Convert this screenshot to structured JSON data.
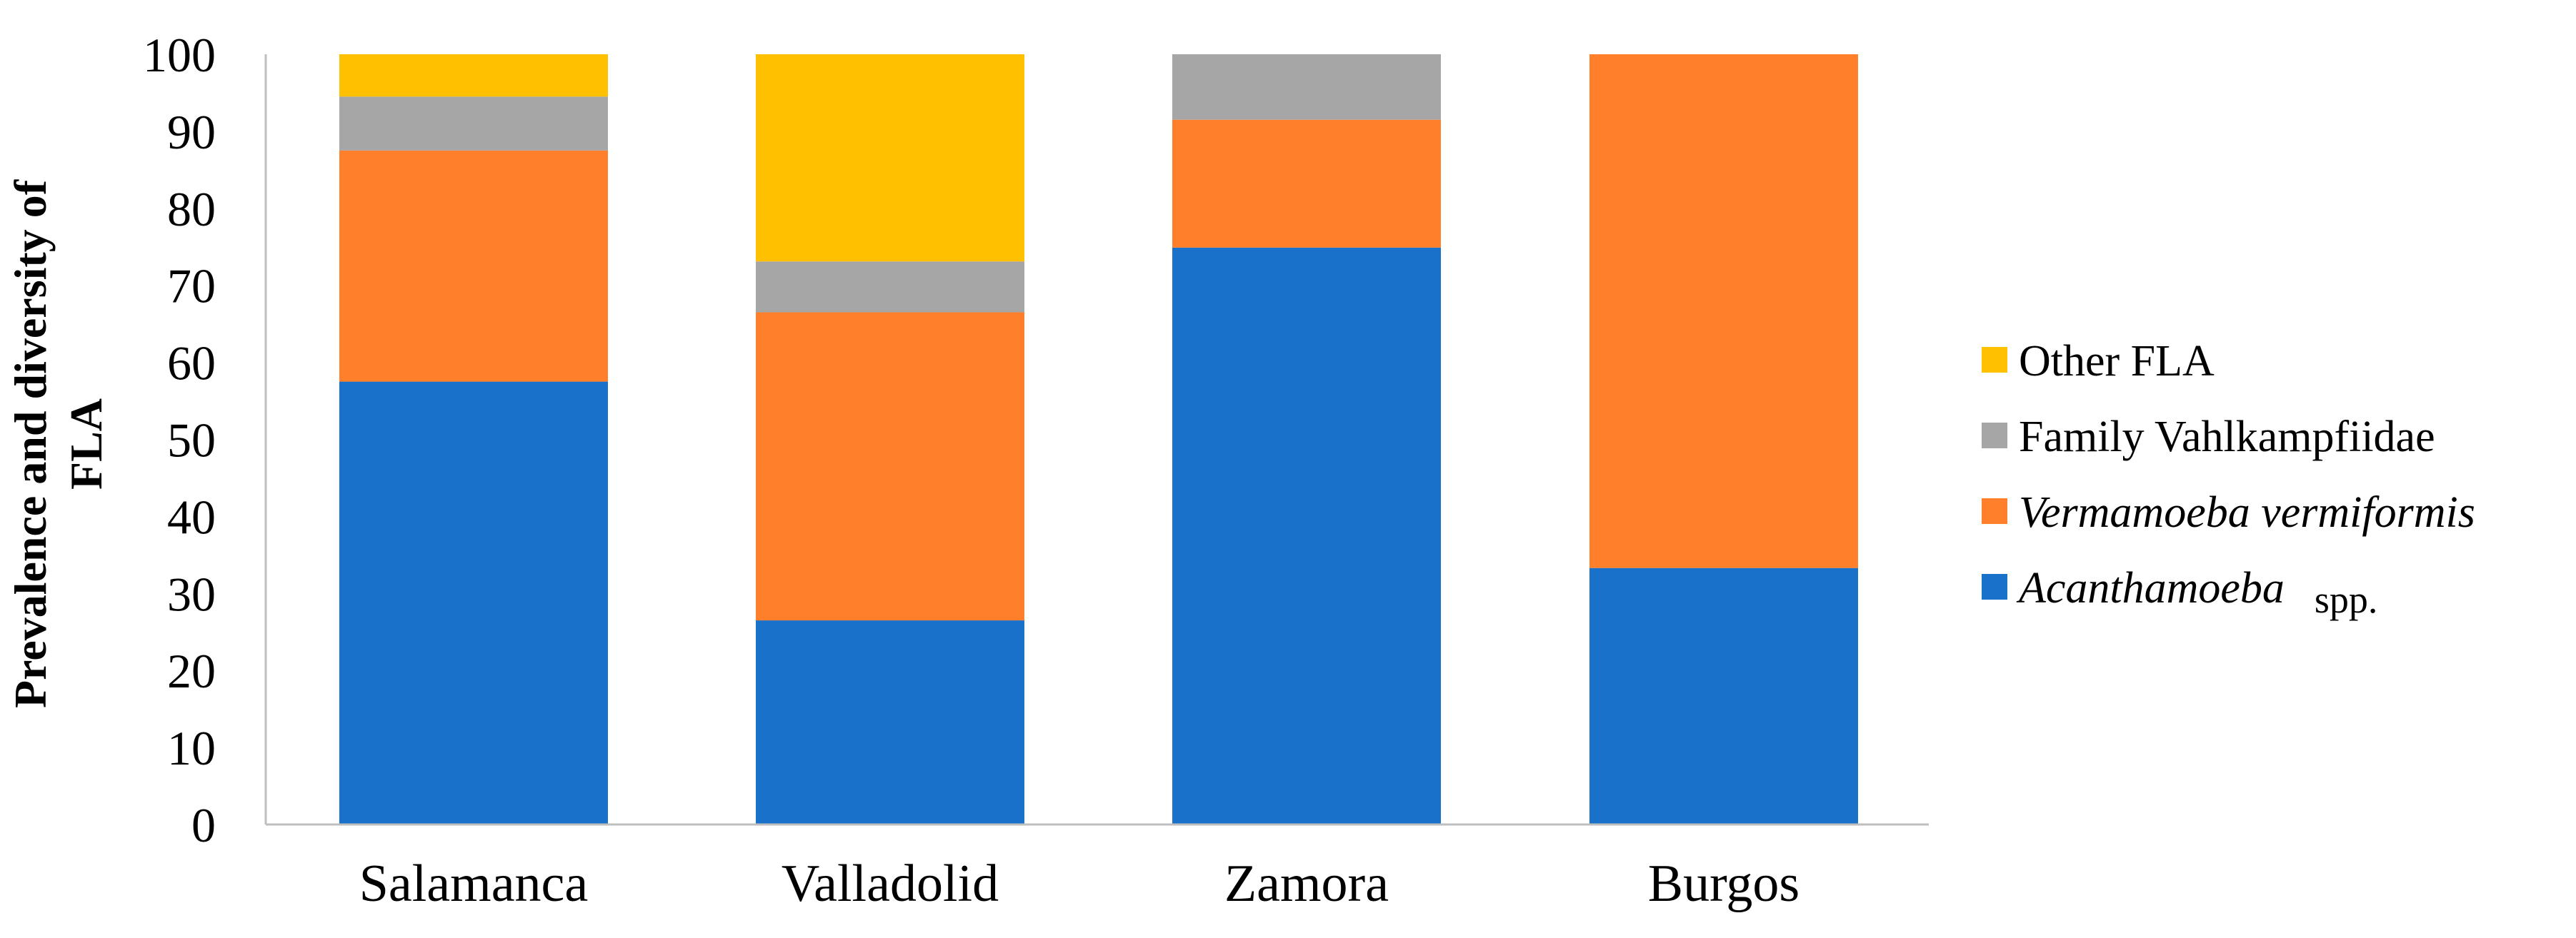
{
  "chart_data": {
    "type": "bar",
    "stacked": true,
    "categories": [
      "Salamanca",
      "Valladolid",
      "Zamora",
      "Burgos"
    ],
    "ylabel_line1": "Prevalence and diversity of",
    "ylabel_line2": "FLA",
    "ylim": [
      0,
      100
    ],
    "yticks": [
      "0",
      "10",
      "20",
      "30",
      "40",
      "50",
      "60",
      "70",
      "80",
      "90",
      "100"
    ],
    "legend_position": "right",
    "series": [
      {
        "name_italic": "Acanthamoeba",
        "name_rest": "spp.",
        "color": "#1a71c9",
        "values": [
          57.5,
          26.5,
          74.9,
          33.3
        ]
      },
      {
        "name_italic": "Vermamoeba vermiformis",
        "name_rest": "",
        "color": "#ff7f2a",
        "values": [
          30.0,
          40.0,
          16.6,
          66.7
        ]
      },
      {
        "name_italic": "",
        "name_rest": "Family Vahlkampfiidae",
        "color": "#a6a6a6",
        "values": [
          7.0,
          6.6,
          8.5,
          0
        ]
      },
      {
        "name_italic": "",
        "name_rest": "Other FLA",
        "color": "#ffc000",
        "values": [
          5.5,
          26.9,
          0,
          0
        ]
      }
    ]
  }
}
